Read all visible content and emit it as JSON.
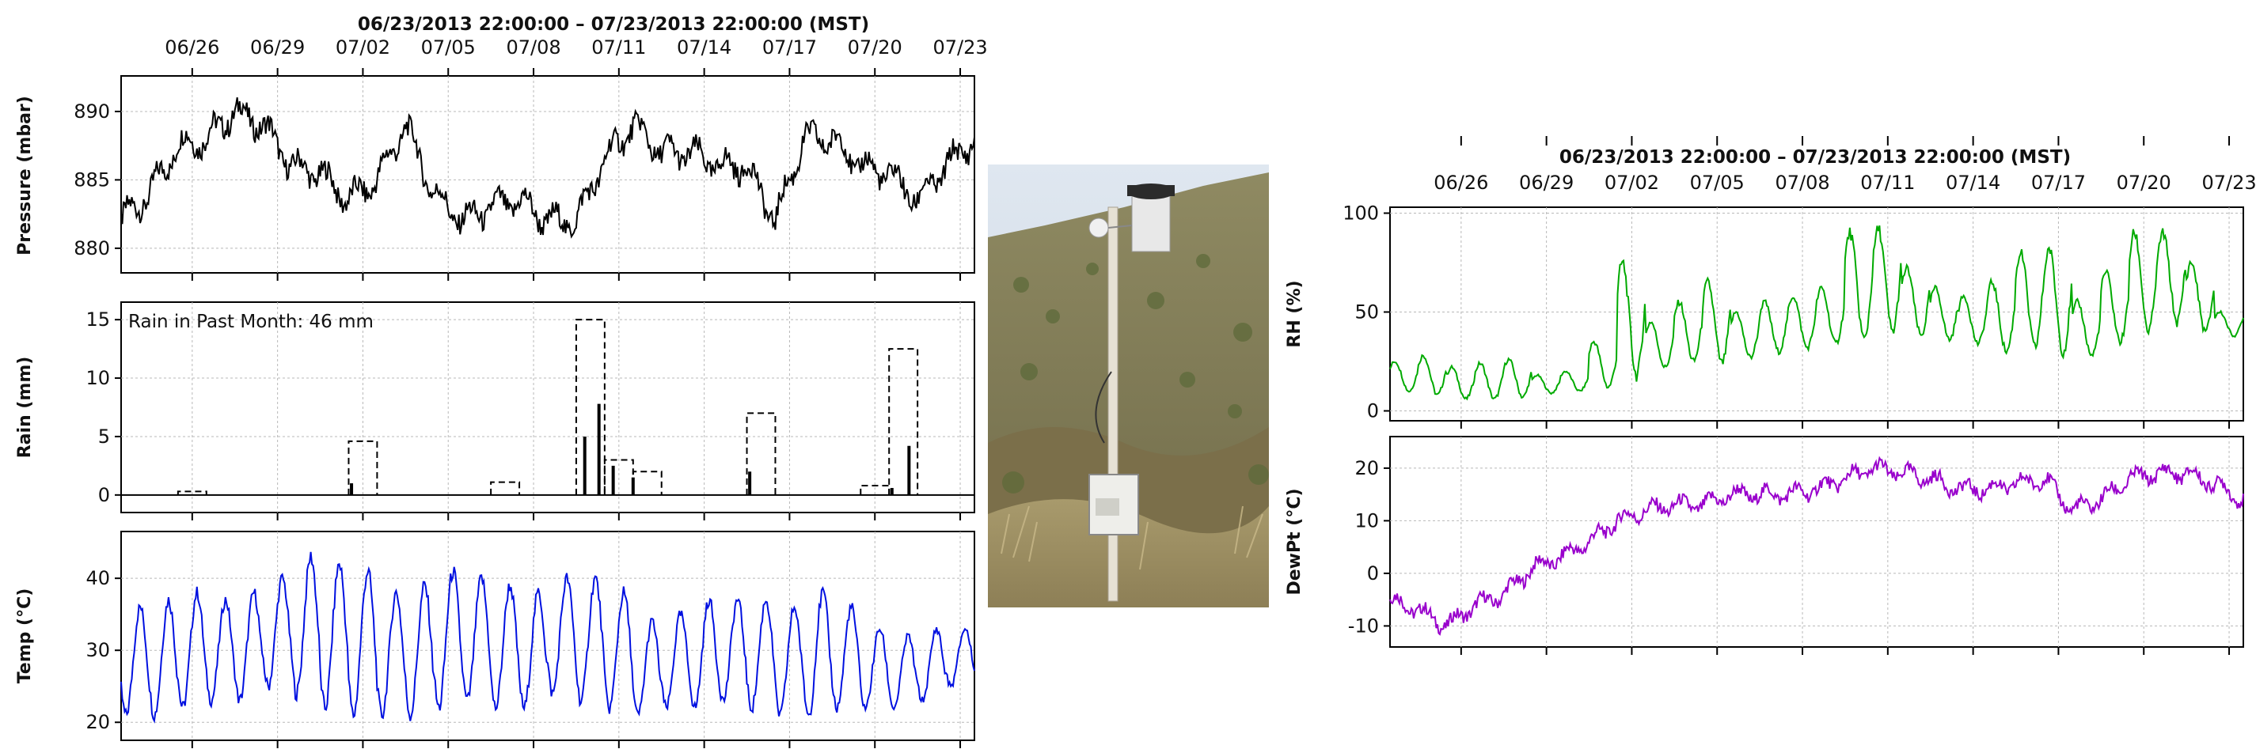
{
  "photo": {
    "description_icon": "weather-station-photo-icon"
  },
  "chart_data": [
    {
      "id": "left-panel",
      "type": "line",
      "title": "06/23/2013 22:00:00  –  07/23/2013 22:00:00 (MST)",
      "x_ticks": [
        "06/26",
        "06/29",
        "07/02",
        "07/05",
        "07/08",
        "07/11",
        "07/14",
        "07/17",
        "07/20",
        "07/23"
      ],
      "x_range_days": [
        0,
        30
      ],
      "x_tick_days": [
        2.5,
        5.5,
        8.5,
        11.5,
        14.5,
        17.5,
        20.5,
        23.5,
        26.5,
        29.5
      ],
      "subplots": [
        {
          "id": "pressure",
          "ylabel": "Pressure (mbar)",
          "ylim": [
            878.2,
            892.6
          ],
          "yticks": [
            880,
            885,
            890
          ],
          "color": "#000000",
          "series": [
            {
              "x": [
                0,
                1,
                2,
                3,
                4,
                5,
                6,
                7,
                8,
                9,
                10,
                11,
                12,
                13,
                14,
                15,
                16,
                17,
                18,
                19,
                20,
                21,
                22,
                23,
                24,
                25,
                26,
                27,
                28,
                29,
                30
              ],
              "y": [
                882,
                884,
                887.5,
                888,
                890,
                889,
                886,
                885.5,
                883.5,
                885,
                889,
                884,
                882,
                883,
                883.5,
                882,
                882,
                886.5,
                889,
                887,
                887,
                886,
                886,
                882,
                888,
                888,
                886,
                885.5,
                883.5,
                886,
                888
              ]
            }
          ]
        },
        {
          "id": "rain",
          "ylabel": "Rain (mm)",
          "ylim": [
            -1.5,
            16.5
          ],
          "yticks": [
            0,
            5,
            10,
            15
          ],
          "annotation": "Rain in Past Month: 46 mm",
          "daily_totals": [
            {
              "start": 2,
              "end": 3,
              "value": 0.3
            },
            {
              "start": 8,
              "end": 9,
              "value": 4.6
            },
            {
              "start": 13,
              "end": 14,
              "value": 1.1
            },
            {
              "start": 16,
              "end": 17,
              "value": 15
            },
            {
              "start": 17,
              "end": 18,
              "value": 3
            },
            {
              "start": 18,
              "end": 19,
              "value": 2
            },
            {
              "start": 22,
              "end": 23,
              "value": 7
            },
            {
              "start": 26,
              "end": 27,
              "value": 0.8
            },
            {
              "start": 27,
              "end": 28,
              "value": 12.5
            }
          ],
          "hourly_spikes": [
            {
              "x": 8.1,
              "value": 1
            },
            {
              "x": 16.3,
              "value": 5
            },
            {
              "x": 16.8,
              "value": 7.8
            },
            {
              "x": 17.3,
              "value": 2.5
            },
            {
              "x": 18.0,
              "value": 1.5
            },
            {
              "x": 22.1,
              "value": 2
            },
            {
              "x": 27.1,
              "value": 0.6
            },
            {
              "x": 27.7,
              "value": 4.2
            }
          ]
        },
        {
          "id": "temp",
          "ylabel": "Temp (°C)",
          "ylim": [
            17.5,
            46.5
          ],
          "yticks": [
            20,
            30,
            40
          ],
          "color": "#0010e0",
          "series": [
            {
              "daily_min": [
                21,
                21,
                22,
                23,
                23,
                25,
                24,
                22,
                21,
                21,
                21,
                22,
                23,
                22,
                22,
                24,
                23,
                22,
                21,
                22,
                22,
                23,
                22,
                21,
                21,
                22,
                22,
                22,
                23,
                25
              ],
              "daily_max": [
                36,
                37,
                38,
                37,
                38,
                40,
                43,
                42,
                41,
                38,
                39,
                41,
                40,
                39,
                38,
                40,
                40,
                38,
                34,
                35,
                37,
                37,
                37,
                36,
                38,
                36,
                33,
                32,
                33,
                33
              ]
            }
          ]
        }
      ]
    },
    {
      "id": "right-panel",
      "type": "line",
      "title": "06/23/2013 22:00:00  –  07/23/2013 22:00:00 (MST)",
      "x_ticks": [
        "06/26",
        "06/29",
        "07/02",
        "07/05",
        "07/08",
        "07/11",
        "07/14",
        "07/17",
        "07/20",
        "07/23"
      ],
      "x_range_days": [
        0,
        30
      ],
      "x_tick_days": [
        2.5,
        5.5,
        8.5,
        11.5,
        14.5,
        17.5,
        20.5,
        23.5,
        26.5,
        29.5
      ],
      "subplots": [
        {
          "id": "rh",
          "ylabel": "RH (%)",
          "ylim": [
            -5,
            103
          ],
          "yticks": [
            0,
            50,
            100
          ],
          "color": "#00aa00",
          "series": [
            {
              "daily_min": [
                10,
                8,
                6,
                6,
                7,
                9,
                10,
                12,
                18,
                22,
                25,
                24,
                27,
                30,
                32,
                34,
                36,
                40,
                38,
                36,
                34,
                30,
                32,
                30,
                28,
                35,
                40,
                45,
                40,
                38
              ],
              "daily_max": [
                25,
                28,
                22,
                24,
                26,
                18,
                20,
                35,
                75,
                45,
                55,
                65,
                50,
                55,
                58,
                62,
                90,
                92,
                72,
                62,
                58,
                65,
                80,
                82,
                55,
                70,
                90,
                90,
                75,
                50
              ]
            }
          ]
        },
        {
          "id": "dewpt",
          "ylabel": "DewPt (°C)",
          "ylim": [
            -14,
            26
          ],
          "yticks": [
            -10,
            0,
            10,
            20
          ],
          "color": "#9900cc",
          "series": [
            {
              "x": [
                0,
                1,
                2,
                3,
                4,
                5,
                6,
                7,
                8,
                9,
                10,
                11,
                12,
                13,
                14,
                15,
                16,
                17,
                18,
                19,
                20,
                21,
                22,
                23,
                24,
                25,
                26,
                27,
                28,
                29,
                30
              ],
              "y": [
                -5,
                -7,
                -10,
                -6,
                -4,
                1,
                3,
                6,
                10,
                12,
                13,
                13,
                15,
                15,
                15,
                16,
                18,
                20,
                19,
                18,
                16,
                16,
                17,
                18,
                12,
                14,
                18,
                19,
                19,
                17,
                14
              ]
            }
          ]
        }
      ]
    }
  ]
}
